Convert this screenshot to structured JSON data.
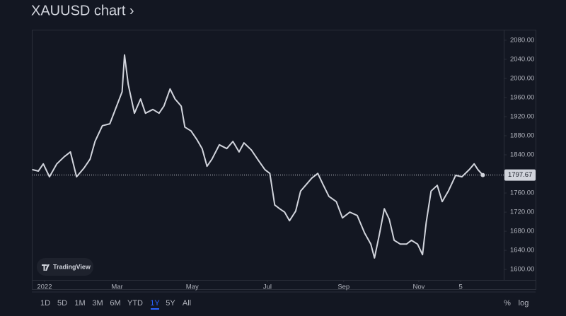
{
  "chart_data": {
    "type": "line",
    "title": "XAUUSD chart ›",
    "x": [
      -10,
      -5,
      -1,
      4,
      10,
      16,
      21,
      26,
      32,
      37,
      41,
      47,
      53,
      59,
      63,
      65,
      68,
      73,
      78,
      82,
      88,
      93,
      97,
      102,
      106,
      111,
      114,
      119,
      124,
      128,
      132,
      136,
      142,
      148,
      153,
      158,
      162,
      168,
      173,
      179,
      183,
      187,
      191,
      195,
      199,
      204,
      208,
      213,
      217,
      222,
      226,
      231,
      237,
      242,
      248,
      254,
      260,
      265,
      268,
      272,
      276,
      280,
      284,
      289,
      294,
      298,
      303,
      307,
      310,
      314,
      319,
      323,
      328,
      334,
      339,
      345,
      349,
      352,
      356
    ],
    "series": [
      {
        "color": "#d1d4dc",
        "values": [
          1809,
          1806,
          1821,
          1794,
          1821,
          1836,
          1846,
          1794,
          1812,
          1831,
          1868,
          1901,
          1905,
          1945,
          1972,
          2049,
          1987,
          1927,
          1957,
          1927,
          1935,
          1927,
          1942,
          1978,
          1957,
          1942,
          1898,
          1890,
          1871,
          1853,
          1816,
          1831,
          1861,
          1853,
          1868,
          1846,
          1865,
          1850,
          1831,
          1809,
          1801,
          1735,
          1727,
          1720,
          1702,
          1722,
          1764,
          1779,
          1791,
          1801,
          1779,
          1753,
          1742,
          1708,
          1720,
          1713,
          1676,
          1653,
          1624,
          1673,
          1727,
          1705,
          1661,
          1653,
          1653,
          1661,
          1653,
          1631,
          1698,
          1764,
          1776,
          1742,
          1764,
          1797,
          1794,
          1809,
          1821,
          1809,
          1797.67
        ]
      }
    ],
    "last_price": 1797.67,
    "xlim": [
      -10.3,
      373
    ],
    "xticks": [
      {
        "value": 0,
        "label": "2022"
      },
      {
        "value": 59,
        "label": "Mar"
      },
      {
        "value": 120,
        "label": "May"
      },
      {
        "value": 181,
        "label": "Jul"
      },
      {
        "value": 243,
        "label": "Sep"
      },
      {
        "value": 304,
        "label": "Nov"
      },
      {
        "value": 338,
        "label": "5"
      }
    ],
    "ylim": [
      1578,
      2102
    ],
    "yticks": [
      {
        "value": 1600,
        "label": "1600.00"
      },
      {
        "value": 1640,
        "label": "1640.00"
      },
      {
        "value": 1680,
        "label": "1680.00"
      },
      {
        "value": 1720,
        "label": "1720.00"
      },
      {
        "value": 1760,
        "label": "1760.00"
      },
      {
        "value": 1800,
        "label": "1800.00"
      },
      {
        "value": 1840,
        "label": "1840.00"
      },
      {
        "value": 1880,
        "label": "1880.00"
      },
      {
        "value": 1920,
        "label": "1920.00"
      },
      {
        "value": 1960,
        "label": "1960.00"
      },
      {
        "value": 2000,
        "label": "2000.00"
      },
      {
        "value": 2040,
        "label": "2040.00"
      },
      {
        "value": 2080,
        "label": "2080.00"
      }
    ],
    "grid": false
  },
  "ui": {
    "brand": "TradingView",
    "ranges": [
      "1D",
      "5D",
      "1M",
      "3M",
      "6M",
      "YTD",
      "1Y",
      "5Y",
      "All"
    ],
    "active_range": 6,
    "scale_options": [
      "%",
      "log"
    ]
  }
}
